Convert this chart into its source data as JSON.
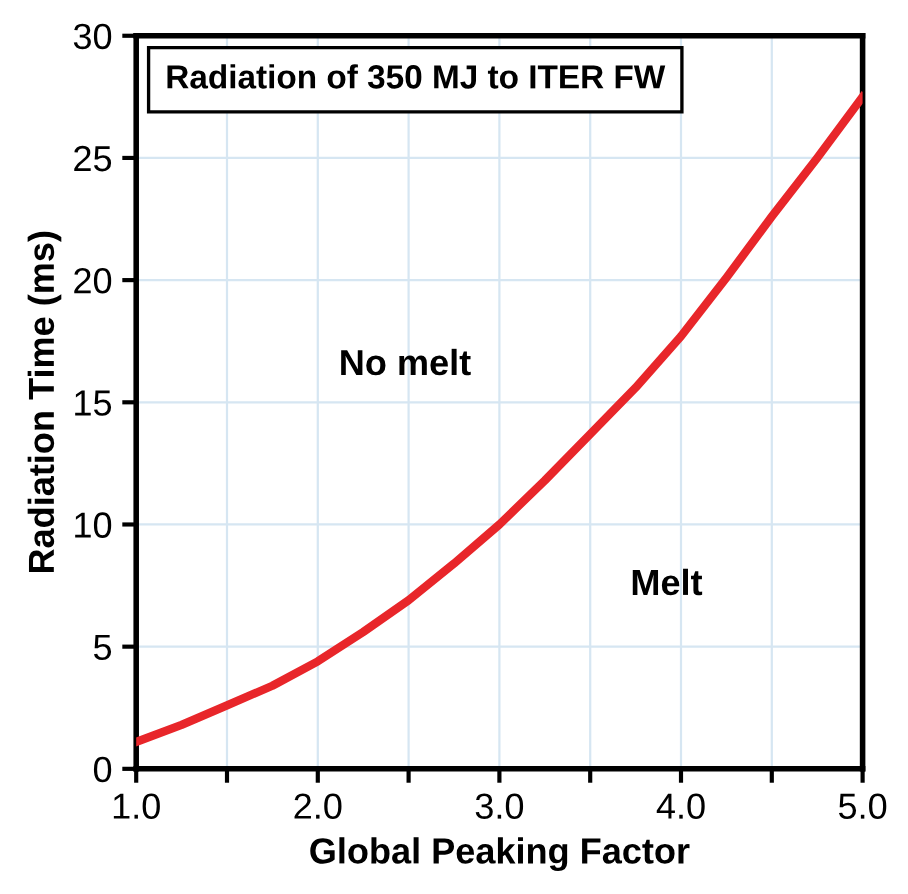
{
  "chart_data": {
    "type": "line",
    "xlabel": "Global Peaking Factor",
    "ylabel": "Radiation Time (ms)",
    "annotations": [
      "Radiation of 350 MJ to ITER FW",
      "No melt",
      "Melt"
    ],
    "series": [
      {
        "color": "#e8262a",
        "x": [
          1.0,
          1.25,
          1.5,
          1.75,
          2.0,
          2.25,
          2.5,
          2.75,
          3.0,
          3.25,
          3.5,
          3.75,
          4.0,
          4.25,
          4.5,
          4.75,
          5.0
        ],
        "values": [
          1.1,
          1.8,
          2.6,
          3.4,
          4.4,
          5.6,
          6.9,
          8.4,
          10.0,
          11.8,
          13.7,
          15.6,
          17.7,
          20.1,
          22.6,
          25.0,
          27.5
        ]
      }
    ],
    "xlim": [
      1.0,
      5.0
    ],
    "ylim": [
      0,
      30
    ],
    "xticks": [
      {
        "value": 1.0,
        "label": "1.0"
      },
      {
        "value": 1.5,
        "label": null
      },
      {
        "value": 2.0,
        "label": "2.0"
      },
      {
        "value": 2.5,
        "label": null
      },
      {
        "value": 3.0,
        "label": "3.0"
      },
      {
        "value": 3.5,
        "label": null
      },
      {
        "value": 4.0,
        "label": "4.0"
      },
      {
        "value": 4.5,
        "label": null
      },
      {
        "value": 5.0,
        "label": "5.0"
      }
    ],
    "yticks": [
      0,
      5,
      10,
      15,
      20,
      25,
      30
    ],
    "grid": true,
    "marker": "none",
    "line_style": "solid",
    "legend": false
  }
}
